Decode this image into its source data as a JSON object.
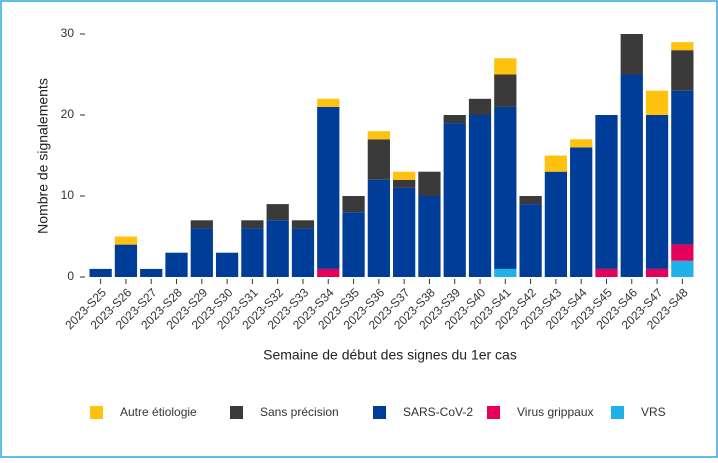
{
  "chart_data": {
    "type": "stacked-bar",
    "x_label": "Semaine de début des signes du 1er cas",
    "y_label": "Nombre de signalements",
    "categories": [
      "2023-S25",
      "2023-S26",
      "2023-S27",
      "2023-S28",
      "2023-S29",
      "2023-S30",
      "2023-S31",
      "2023-S32",
      "2023-S33",
      "2023-S34",
      "2023-S35",
      "2023-S36",
      "2023-S37",
      "2023-S38",
      "2023-S39",
      "2023-S40",
      "2023-S41",
      "2023-S42",
      "2023-S43",
      "2023-S44",
      "2023-S45",
      "2023-S46",
      "2023-S47",
      "2023-S48"
    ],
    "series": [
      {
        "name": "Autre étiologie",
        "color": "#ffc20e",
        "values": [
          0,
          1,
          0,
          0,
          0,
          0,
          0,
          0,
          0,
          1,
          0,
          1,
          1,
          0,
          0,
          0,
          2,
          0,
          2,
          1,
          0,
          0,
          3,
          1
        ]
      },
      {
        "name": "Sans précision",
        "color": "#3a3a3a",
        "values": [
          0,
          0,
          0,
          0,
          1,
          0,
          1,
          2,
          1,
          0,
          2,
          5,
          1,
          3,
          1,
          2,
          4,
          1,
          0,
          0,
          0,
          5,
          0,
          5
        ]
      },
      {
        "name": "SARS-CoV-2",
        "color": "#003d99",
        "values": [
          1,
          4,
          1,
          3,
          6,
          3,
          6,
          7,
          6,
          20,
          8,
          12,
          11,
          10,
          19,
          20,
          20,
          9,
          13,
          16,
          19,
          25,
          19,
          19
        ]
      },
      {
        "name": "Virus grippaux",
        "color": "#e6005a",
        "values": [
          0,
          0,
          0,
          0,
          0,
          0,
          0,
          0,
          0,
          1,
          0,
          0,
          0,
          0,
          0,
          0,
          0,
          0,
          0,
          0,
          1,
          0,
          1,
          2
        ]
      },
      {
        "name": "VRS",
        "color": "#1eb2e8",
        "values": [
          0,
          0,
          0,
          0,
          0,
          0,
          0,
          0,
          0,
          0,
          0,
          0,
          0,
          0,
          0,
          0,
          1,
          0,
          0,
          0,
          0,
          0,
          0,
          2
        ]
      }
    ],
    "ylim": [
      0,
      30
    ],
    "yticks": [
      0,
      10,
      20,
      30
    ],
    "legend": "bottom"
  }
}
